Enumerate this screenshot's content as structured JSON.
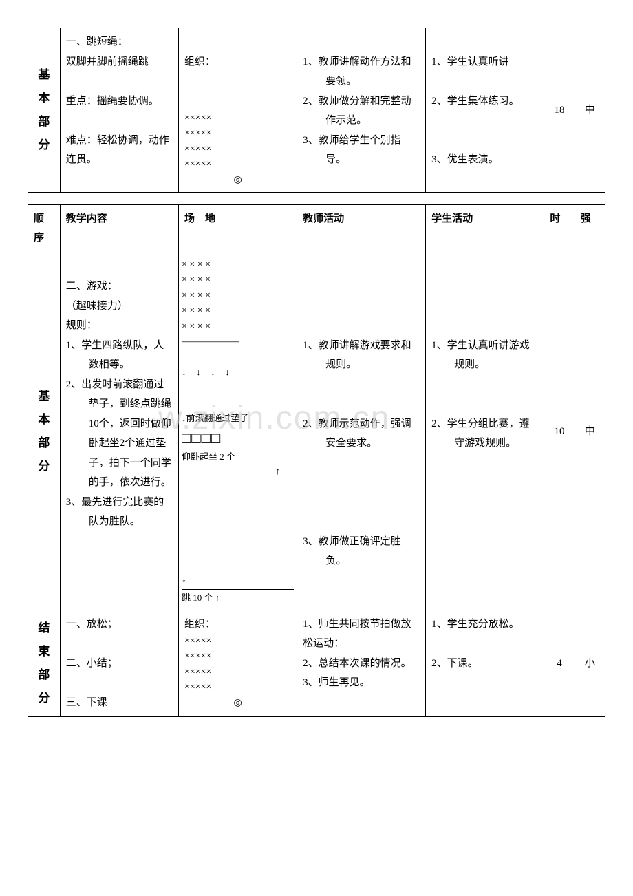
{
  "table1": {
    "section_label": "基本部分",
    "content": {
      "line1": "一、跳短绳：",
      "line2": "双脚并脚前摇绳跳",
      "key_label": "重点：",
      "key_text": "摇绳要协调。",
      "diff_label": "难点：",
      "diff_text": "轻松协调，动作连贯。"
    },
    "field": {
      "label": "组织：",
      "row": "×××××",
      "teacher_mark": "◎"
    },
    "teacher": {
      "item1": "1、教师讲解动作方法和要领。",
      "item2": "2、教师做分解和完整动作示范。",
      "item3": "3、教师给学生个别指导。"
    },
    "student": {
      "item1": "1、学生认真听讲",
      "item2": "2、学生集体练习。",
      "item3": "3、优生表演。"
    },
    "time": "18",
    "intensity": "中"
  },
  "headers": {
    "col1": "顺序",
    "col2": "教学内容",
    "col3": "场　地",
    "col4": "教师活动",
    "col5": "学生活动",
    "col6": "时",
    "col7": "强"
  },
  "table2_main": {
    "section_label": "基本部分",
    "content": {
      "title": "二、游戏：",
      "subtitle": "（趣味接力）",
      "rules_label": "规则：",
      "rule1": "1、学生四路纵队，人数相等。",
      "rule2": "2、出发时前滚翻通过垫子，到终点跳绳10个，返回时做仰卧起坐2个通过垫子，拍下一个同学的手，依次进行。",
      "rule3": "3、最先进行完比赛的队为胜队。"
    },
    "field": {
      "x_row": "× × × ×",
      "dash_row": "――――――",
      "arrow_row": "↓　↓　↓　↓",
      "mat_label": "↓前滚翻通过垫子",
      "boxes": "□□□□",
      "situp_label": "仰卧起坐 2 个",
      "up_arrow": "↑",
      "down_arrow": "↓",
      "jump_label": "跳 10 个 ↑"
    },
    "teacher": {
      "item1": "1、教师讲解游戏要求和规则。",
      "item2": "2、教师示范动作，强调安全要求。",
      "item3": "3、教师做正确评定胜负。"
    },
    "student": {
      "item1": "1、学生认真听讲游戏规则。",
      "item2": "2、学生分组比赛，遵守游戏规则。"
    },
    "time": "10",
    "intensity": "中"
  },
  "table2_end": {
    "section_label": "结束部分",
    "content": {
      "item1": "一、放松；",
      "item2": "二、小结；",
      "item3": "三、下课"
    },
    "field": {
      "label": "组织：",
      "row": "×××××",
      "teacher_mark": "◎"
    },
    "teacher": {
      "item1": "1、师生共同按节拍做放松运动：",
      "item2": "2、总结本次课的情况。",
      "item3": "3、师生再见。"
    },
    "student": {
      "item1": "1、学生充分放松。",
      "item2": "2、下课。"
    },
    "time": "4",
    "intensity": "小"
  }
}
